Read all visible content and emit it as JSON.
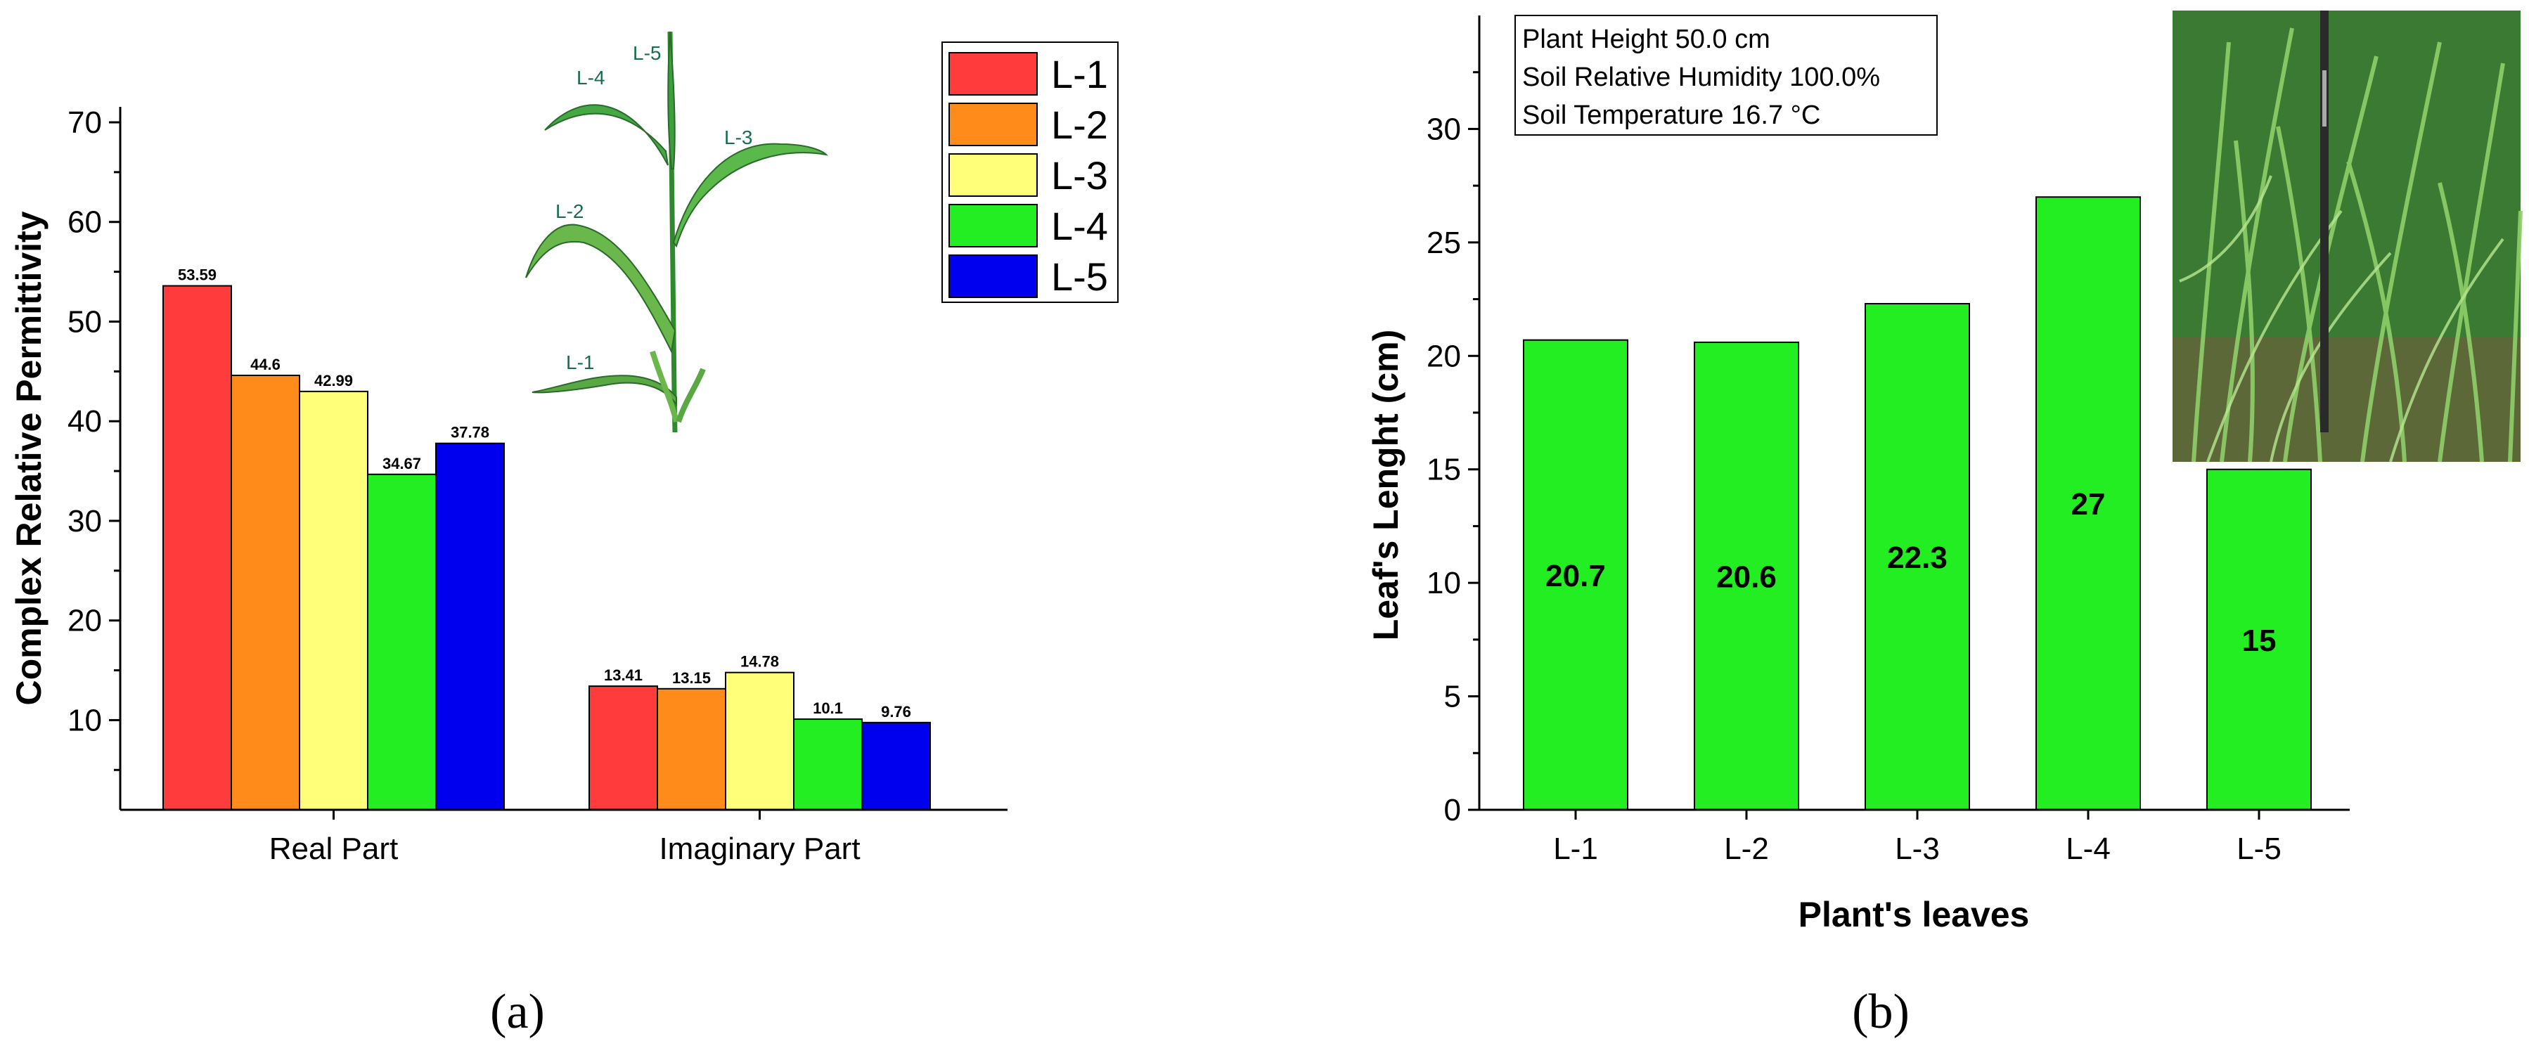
{
  "chart_data": [
    {
      "type": "bar",
      "panel": "(a)",
      "categories": [
        "Real Part",
        "Imaginary Part"
      ],
      "series": [
        {
          "name": "L-1",
          "color": "#ff3b3b",
          "values": [
            53.59,
            13.41
          ]
        },
        {
          "name": "L-2",
          "color": "#ff8c1a",
          "values": [
            44.6,
            13.15
          ]
        },
        {
          "name": "L-3",
          "color": "#ffff7a",
          "values": [
            42.99,
            14.78
          ]
        },
        {
          "name": "L-4",
          "color": "#22ee22",
          "values": [
            34.67,
            10.1
          ]
        },
        {
          "name": "L-5",
          "color": "#0000ee",
          "values": [
            37.78,
            9.76
          ]
        }
      ],
      "xlabel": "",
      "ylabel": "Complex Relative Permittivity",
      "ylim": [
        1,
        70
      ],
      "yticks": [
        10,
        20,
        30,
        40,
        50,
        60,
        70
      ],
      "legend": "top-right",
      "plant_illustration_labels": [
        "L-1",
        "L-2",
        "L-3",
        "L-4",
        "L-5"
      ]
    },
    {
      "type": "bar",
      "panel": "(b)",
      "categories": [
        "L-1",
        "L-2",
        "L-3",
        "L-4",
        "L-5"
      ],
      "values": [
        20.7,
        20.6,
        22.3,
        27,
        15
      ],
      "value_labels": [
        "20.7",
        "20.6",
        "22.3",
        "27",
        "15"
      ],
      "color": "#22ee22",
      "xlabel": "Plant's leaves",
      "ylabel": "Leaf's Lenght (cm)",
      "ylim": [
        0,
        35
      ],
      "yticks": [
        0,
        5,
        10,
        15,
        20,
        25,
        30
      ],
      "info_box": [
        "Plant Height 50.0 cm",
        "Soil Relative Humidity 100.0%",
        "Soil Temperature 16.7 °C"
      ]
    }
  ]
}
